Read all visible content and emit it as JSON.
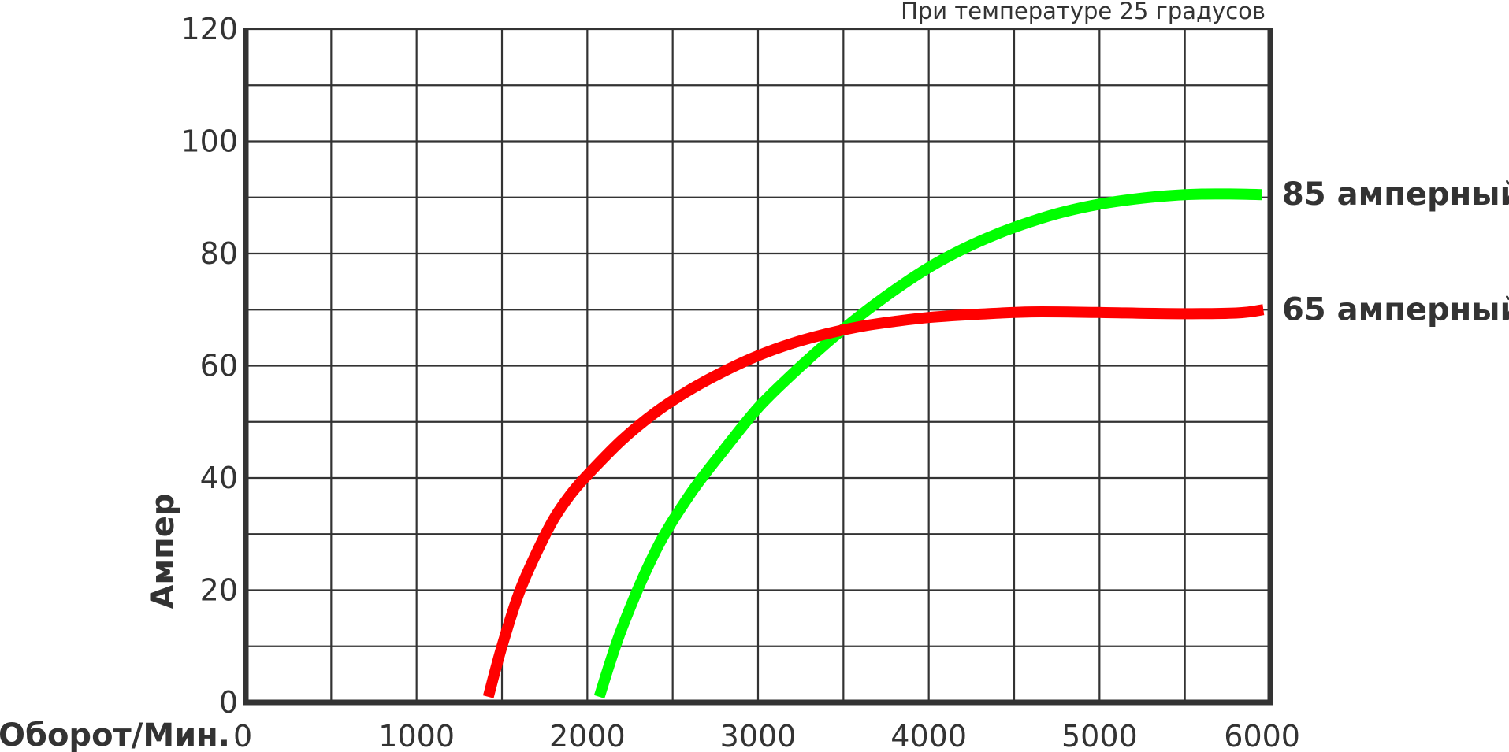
{
  "chart_data": {
    "type": "line",
    "title": "",
    "subtitle": "При температуре 25 градусов",
    "xlabel": "Оборот/Мин.",
    "ylabel": "Ампер",
    "xlim": [
      0,
      6000
    ],
    "ylim": [
      0,
      120
    ],
    "x_ticks": [
      0,
      1000,
      2000,
      3000,
      4000,
      5000,
      6000
    ],
    "y_ticks": [
      0,
      20,
      40,
      60,
      80,
      100,
      120
    ],
    "x_gridlines": [
      0,
      500,
      1000,
      1500,
      2000,
      2500,
      3000,
      3500,
      4000,
      4500,
      5000,
      5500,
      6000
    ],
    "y_gridlines": [
      0,
      10,
      20,
      30,
      40,
      50,
      60,
      70,
      80,
      90,
      100,
      110,
      120
    ],
    "grid": true,
    "legend": "inline labels at right end of each series",
    "series": [
      {
        "name": "85 амперный",
        "color": "#00ff00",
        "x": [
          2070,
          2200,
          2400,
          2600,
          2800,
          3000,
          3200,
          3400,
          3600,
          3800,
          4000,
          4200,
          4400,
          4600,
          4800,
          5000,
          5200,
          5400,
          5600,
          5800,
          5950
        ],
        "y": [
          1,
          13,
          27,
          37,
          45,
          52.5,
          58.5,
          64,
          69,
          73.5,
          77.5,
          80.8,
          83.5,
          85.7,
          87.5,
          88.8,
          89.7,
          90.3,
          90.6,
          90.6,
          90.5
        ]
      },
      {
        "name": "65 амперный",
        "color": "#ff0000",
        "x": [
          1420,
          1500,
          1600,
          1700,
          1800,
          1900,
          2000,
          2200,
          2400,
          2600,
          2800,
          3000,
          3200,
          3400,
          3600,
          3800,
          4000,
          4300,
          4600,
          5000,
          5400,
          5800,
          5960
        ],
        "y": [
          1,
          10,
          19.5,
          26.5,
          32.5,
          37,
          40.5,
          46.7,
          51.7,
          55.7,
          59,
          61.8,
          64,
          65.7,
          67,
          67.9,
          68.6,
          69.2,
          69.6,
          69.5,
          69.3,
          69.4,
          70
        ]
      }
    ]
  }
}
